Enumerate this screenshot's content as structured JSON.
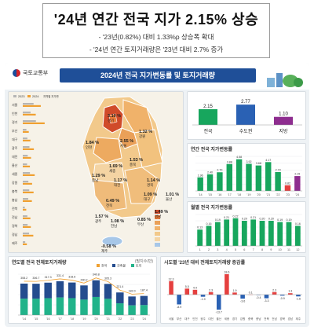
{
  "header": {
    "title": "'24년 연간 전국 지가 2.15% 상승",
    "line1": "- '23년(0.82%) 대비 1.33%p 상승폭 확대",
    "line2": "- '24년 연간 토지거래량은 '23년 대비 2.7% 증가"
  },
  "banner": {
    "logo_text": "국토교통부",
    "title": "2024년 전국 지가변동률 및 토지거래량"
  },
  "colors": {
    "brand": "#1f4f98",
    "bar_green": "#17a65d",
    "bar_red": "#e5403f",
    "bar_purple": "#8e2d8f",
    "bar_blue": "#2a61b4",
    "trans_navy": "#244c8e",
    "trans_green": "#21b38a"
  },
  "regional_panel": {
    "legend_2023": "2023",
    "legend_2024": "2024",
    "column_label": "지역별 지가변동률",
    "regions": [
      "서울",
      "인천",
      "경기",
      "부산",
      "대구",
      "광주",
      "대전",
      "울산",
      "세종",
      "강원",
      "충북",
      "충남",
      "전북",
      "전남",
      "경북",
      "경남",
      "제주"
    ]
  },
  "map": {
    "labels": [
      {
        "name": "경기",
        "value": "3.10 %"
      },
      {
        "name": "강원",
        "value": "1.32 %"
      },
      {
        "name": "인천",
        "value": "1.84 %"
      },
      {
        "name": "서울",
        "value": "2.55 %"
      },
      {
        "name": "충북",
        "value": "1.53 %"
      },
      {
        "name": "세종",
        "value": "1.69 %"
      },
      {
        "name": "충남",
        "value": "1.29 %"
      },
      {
        "name": "대전",
        "value": "1.17 %"
      },
      {
        "name": "경북",
        "value": "1.14 %"
      },
      {
        "name": "대구",
        "value": "1.09 %"
      },
      {
        "name": "울산",
        "value": "1.01 %"
      },
      {
        "name": "전북",
        "value": "0.49 %"
      },
      {
        "name": "광주",
        "value": "1.57 %"
      },
      {
        "name": "전남",
        "value": "1.08 %"
      },
      {
        "name": "부산",
        "value": "0.85 %"
      },
      {
        "name": "경남",
        "value": "1.49 %"
      },
      {
        "name": "제주",
        "value": "-0.58 %"
      }
    ]
  },
  "chart_data": [
    {
      "type": "bar",
      "title": "",
      "categories": [
        "전국",
        "수도권",
        "지방"
      ],
      "values": [
        2.15,
        2.77,
        1.1
      ],
      "value_labels": [
        "2.15",
        "2.77",
        "1.10"
      ],
      "colors": [
        "#17a65d",
        "#2a61b4",
        "#8e2d8f"
      ]
    },
    {
      "type": "bar",
      "title": "연간 전국 지가변동률",
      "categories": [
        "'14",
        "'15",
        "'16",
        "'17",
        "'18",
        "'19",
        "'20",
        "'21",
        "'22",
        "'23",
        "'24"
      ],
      "values": [
        1.96,
        2.4,
        2.7,
        3.88,
        4.58,
        3.92,
        3.68,
        4.17,
        2.73,
        0.82,
        2.15
      ],
      "value_labels": [
        "1.96",
        "2.40",
        "2.70",
        "3.88",
        "4.58",
        "3.92",
        "3.68",
        "4.17",
        "2.73",
        "0.82",
        "2.15"
      ]
    },
    {
      "type": "bar",
      "title": "월별 전국 지가변동률",
      "categories": [
        "1",
        "2",
        "3",
        "4",
        "5",
        "6",
        "7",
        "8",
        "9",
        "10",
        "11",
        "12"
      ],
      "values": [
        0.13,
        0.16,
        0.19,
        0.21,
        0.22,
        0.2,
        0.21,
        0.2,
        0.2,
        0.19,
        0.19,
        0.16
      ],
      "value_labels": [
        "0.13",
        "0.16",
        "0.19",
        "0.21",
        "0.22",
        "0.20",
        "0.21",
        "0.20",
        "0.20",
        "0.19",
        "0.19",
        "0.16"
      ]
    },
    {
      "type": "bar",
      "title": "연도별 전국 전체토지거래량",
      "unit": "(필지수/만)",
      "legend": [
        "전국",
        "건축물",
        "토지"
      ],
      "categories": [
        "'14",
        "'15",
        "'16",
        "'17",
        "'18",
        "'19",
        "'20",
        "'21",
        "'22",
        "'23",
        "'24"
      ],
      "values": [
        308.2,
        306.7,
        317.3,
        331.4,
        318.6,
        290.2,
        340.8,
        305.3,
        221.4,
        182.0,
        187.4
      ],
      "value_labels": [
        "308.2",
        "306.7",
        "317.3",
        "331.4",
        "318.6",
        "290.2",
        "340.8",
        "305.3",
        "221.4",
        "182.0",
        "187.4"
      ]
    },
    {
      "type": "bar",
      "title": "시도별 '23년 대비 전체토지거래량 증감률",
      "categories": [
        "서울",
        "부산",
        "대구",
        "인천",
        "광주",
        "대전",
        "울산",
        "세종",
        "경기",
        "강원",
        "충북",
        "충남",
        "전북",
        "전남",
        "경북",
        "경남",
        "제주"
      ],
      "values": [
        12.3,
        -8.9,
        5.5,
        4.4,
        -1.9,
        2.3,
        -13.7,
        18.6,
        1.9,
        -3.6,
        0.1,
        -0.4,
        -3.3,
        2.3,
        -0.9,
        1.3,
        -1.6
      ],
      "value_labels": [
        "12.3",
        "-8.9",
        "5.5",
        "4.4",
        "-1.9",
        "2.3",
        "-13.7",
        "18.6",
        "1.9",
        "-3.6",
        "0.1",
        "-0.4",
        "-3.3",
        "2.3",
        "-0.9",
        "1.3",
        "-1.6"
      ]
    }
  ]
}
